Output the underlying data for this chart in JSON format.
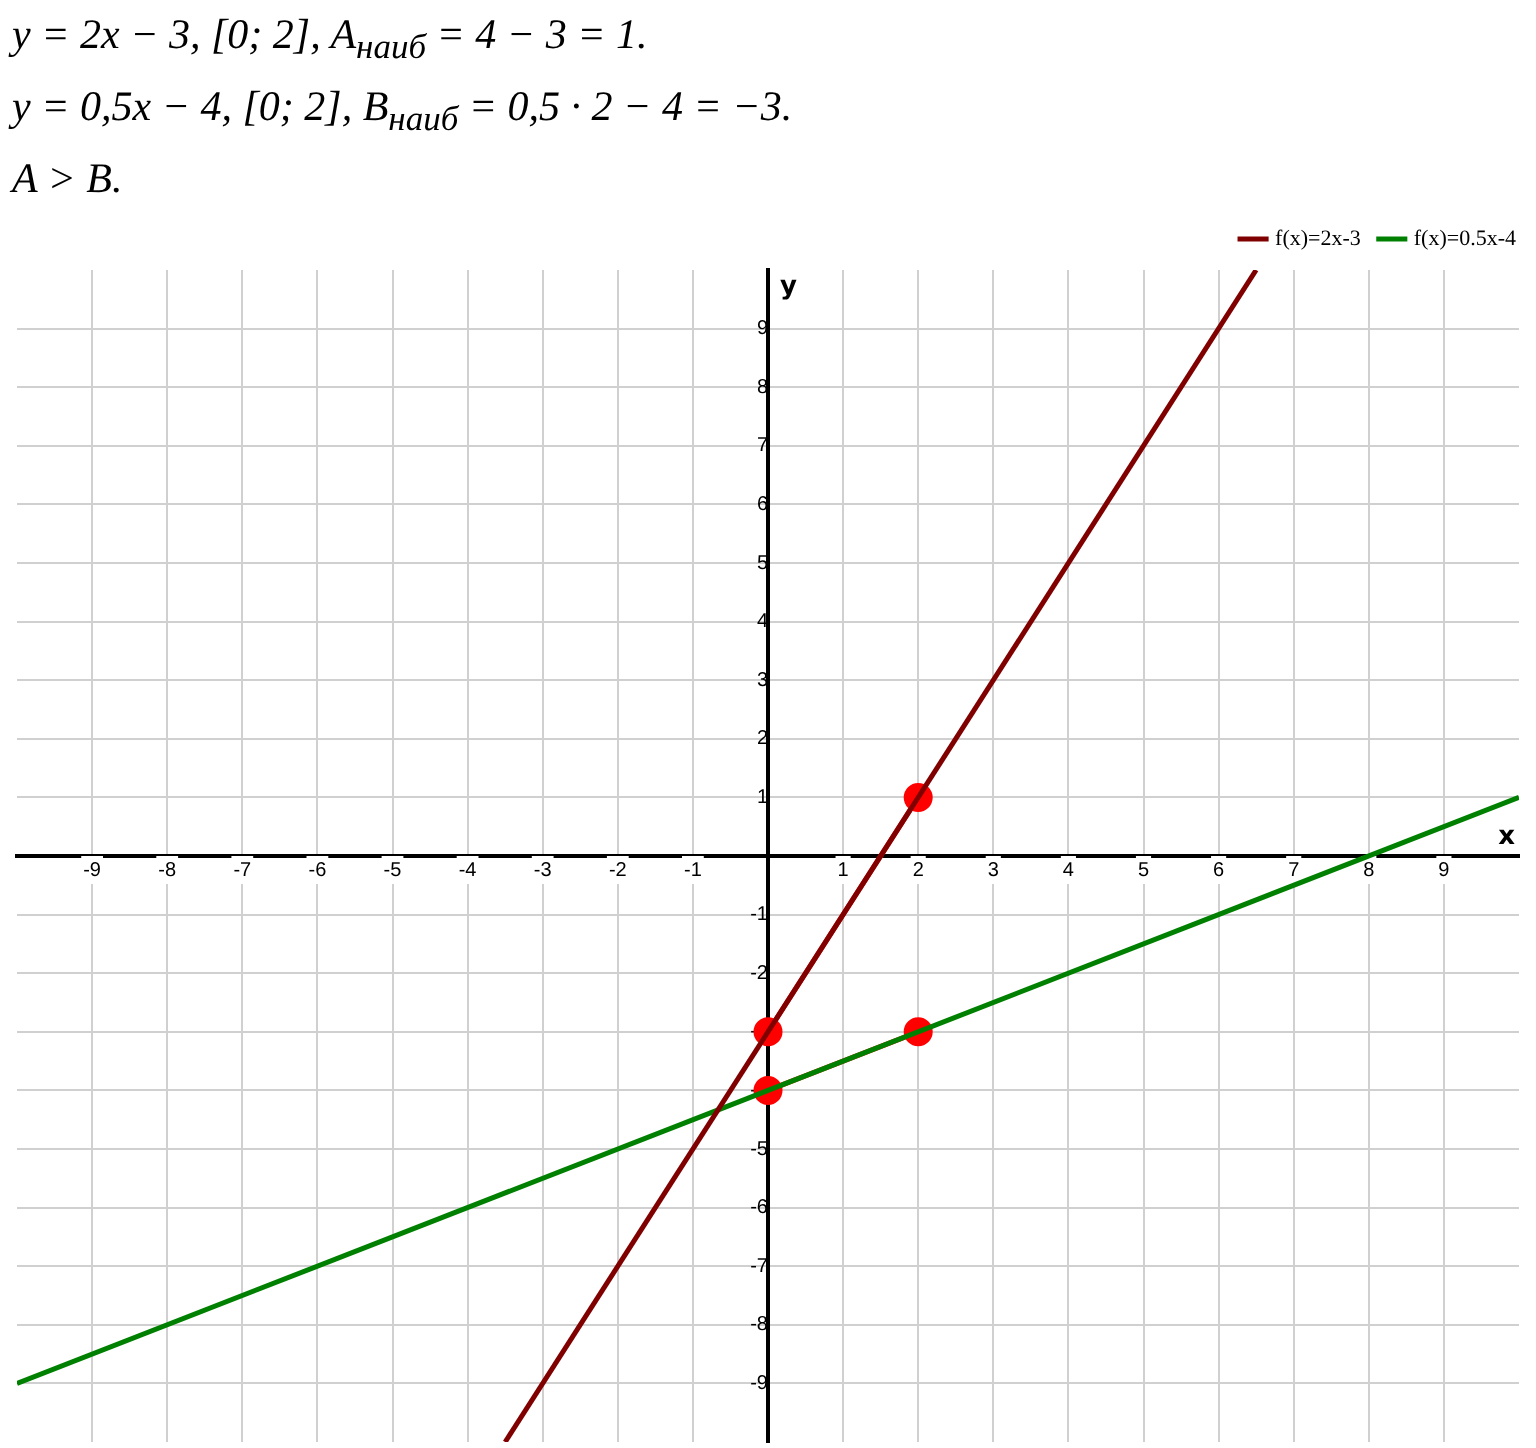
{
  "chart_data": {
    "type": "line",
    "annotations": [
      "y = 2x − 3,        [0; 2],        A$_{наиб}$ = 4 − 3 = 1.",
      "y = 0,5x − 4,        [0; 2],        B$_{наиб}$ = 0,5 · 2 − 4 = −3.",
      "A > B."
    ],
    "xlabel": "x",
    "ylabel": "y",
    "series": [
      {
        "name": "f(x)=2x-3",
        "color": "#800000",
        "x": [
          -3.5,
          6.5
        ],
        "values": [
          -10,
          10
        ],
        "marker": "none"
      },
      {
        "name": "f(x)=0.5x-4",
        "color": "#008000",
        "x": [
          -10,
          10
        ],
        "values": [
          -9,
          1
        ],
        "marker": "none"
      },
      {
        "color": "#ff0000",
        "x": [
          0,
          2
        ],
        "values": [
          -3,
          1
        ],
        "marker": "circle"
      },
      {
        "color": "#ff0000",
        "x": [
          0,
          2
        ],
        "values": [
          -4,
          -3
        ],
        "marker": "circle"
      }
    ],
    "xlim": [
      -10,
      10
    ],
    "ylim": [
      -10,
      10
    ],
    "xticks": [
      -9,
      -8,
      -7,
      -6,
      -5,
      -4,
      -3,
      -2,
      -1,
      {
        "value": 0,
        "label": null
      },
      1,
      2,
      3,
      4,
      5,
      6,
      7,
      8,
      9
    ],
    "yticks": [
      -9,
      -8,
      -7,
      -6,
      -5,
      -4,
      -3,
      -2,
      -1,
      {
        "value": 0,
        "label": null
      },
      1,
      2,
      3,
      4,
      5,
      6,
      7,
      8,
      9
    ],
    "grid": true,
    "legend": "top right"
  }
}
